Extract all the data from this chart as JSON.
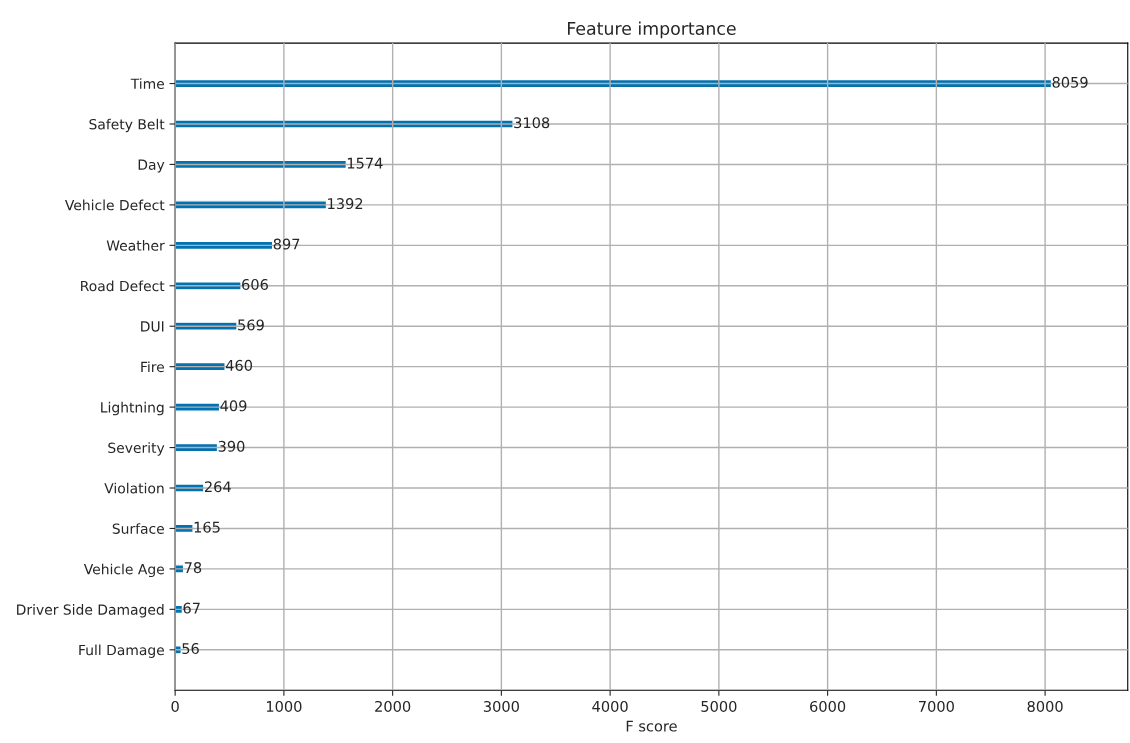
{
  "chart_data": {
    "type": "bar",
    "orientation": "horizontal",
    "title": "Feature importance",
    "xlabel": "F score",
    "categories": [
      "Time",
      "Safety Belt",
      "Day",
      "Vehicle Defect",
      "Weather",
      "Road Defect",
      "DUI",
      "Fire",
      "Lightning",
      "Severity",
      "Violation",
      "Surface",
      "Vehicle Age",
      "Driver Side Damaged",
      "Full Damage"
    ],
    "values": [
      8059,
      3108,
      1574,
      1392,
      897,
      606,
      569,
      460,
      409,
      390,
      264,
      165,
      78,
      67,
      56
    ],
    "color": "#0072b2",
    "xlim": [
      0,
      8760
    ],
    "xticks": [
      0,
      1000,
      2000,
      3000,
      4000,
      5000,
      6000,
      7000,
      8000
    ],
    "grid": true,
    "data_labels": true
  }
}
